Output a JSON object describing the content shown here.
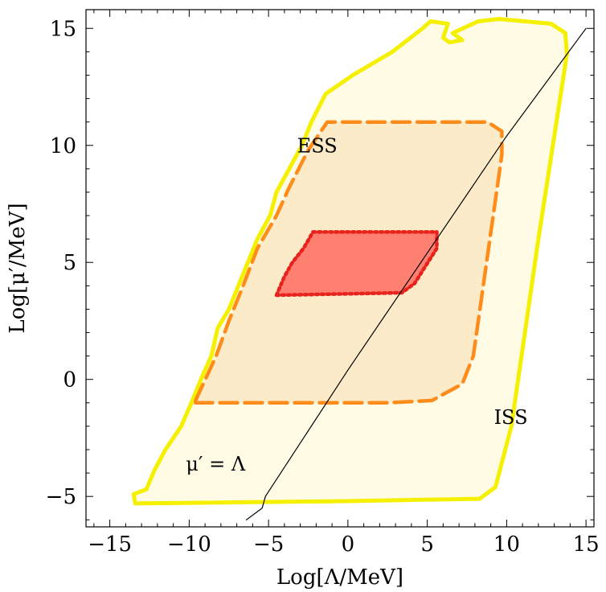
{
  "chart_data": {
    "type": "area",
    "xlabel": "Log[Λ/MeV]",
    "ylabel": "Log[μ′/MeV]",
    "xlim": [
      -16.5,
      15.5
    ],
    "ylim": [
      -6.3,
      15.8
    ],
    "xticks": [
      -15,
      -10,
      -5,
      0,
      5,
      10,
      15
    ],
    "yticks": [
      -5,
      0,
      5,
      10,
      15
    ],
    "xtick_labels": [
      "−15",
      "−10",
      "−5",
      "0",
      "5",
      "10",
      "15"
    ],
    "ytick_labels": [
      "−5",
      "0",
      "5",
      "10",
      "15"
    ],
    "colors": {
      "outer_stroke": "#f5f000",
      "outer_fill": "#fffbe5",
      "middle_stroke": "#ff8c1a",
      "middle_fill": "#fcebc8",
      "inner_stroke": "#e8221c",
      "inner_fill": "#ff8070",
      "line": "#000000"
    },
    "annotations": [
      {
        "text": "ESS",
        "x": -3.2,
        "y": 9.7
      },
      {
        "text": "ISS",
        "x": 9.2,
        "y": -1.9
      },
      {
        "text": "μ′ = Λ",
        "x": -10.2,
        "y": -3.9
      }
    ],
    "series": [
      {
        "region": "outer",
        "style": "solid",
        "points": [
          [
            -13.4,
            -5.3
          ],
          [
            -13.5,
            -4.9
          ],
          [
            -12.7,
            -4.7
          ],
          [
            -12.2,
            -3.9
          ],
          [
            -11.5,
            -3.0
          ],
          [
            -10.5,
            -2.0
          ],
          [
            -9.8,
            -0.9
          ],
          [
            -9.2,
            0.1
          ],
          [
            -8.6,
            1.0
          ],
          [
            -8.2,
            2.2
          ],
          [
            -7.5,
            3.0
          ],
          [
            -6.9,
            4.0
          ],
          [
            -6.3,
            5.0
          ],
          [
            -5.7,
            6.0
          ],
          [
            -4.9,
            7.0
          ],
          [
            -4.5,
            8.0
          ],
          [
            -3.7,
            9.0
          ],
          [
            -2.9,
            10.0
          ],
          [
            -2.3,
            11.0
          ],
          [
            -1.4,
            12.2
          ],
          [
            0.3,
            13.0
          ],
          [
            2.8,
            14.0
          ],
          [
            4.7,
            15.0
          ],
          [
            5.2,
            15.3
          ],
          [
            6.3,
            15.2
          ],
          [
            6.0,
            14.6
          ],
          [
            6.4,
            14.4
          ],
          [
            7.2,
            14.5
          ],
          [
            6.6,
            14.8
          ],
          [
            8.2,
            15.3
          ],
          [
            9.5,
            15.4
          ],
          [
            12.8,
            15.2
          ],
          [
            13.7,
            14.8
          ],
          [
            13.8,
            13.9
          ],
          [
            12.0,
            6.0
          ],
          [
            10.3,
            -2.0
          ],
          [
            9.3,
            -4.6
          ],
          [
            8.3,
            -5.1
          ],
          [
            0,
            -5.2
          ],
          [
            -13.4,
            -5.3
          ]
        ]
      },
      {
        "region": "middle",
        "style": "dashed",
        "points": [
          [
            -9.6,
            -0.9
          ],
          [
            -8.3,
            1.0
          ],
          [
            -7.5,
            2.5
          ],
          [
            -6.6,
            4.0
          ],
          [
            -5.7,
            5.6
          ],
          [
            -4.5,
            7.0
          ],
          [
            -3.7,
            8.2
          ],
          [
            -2.5,
            9.8
          ],
          [
            -1.3,
            11.0
          ],
          [
            2.5,
            11.0
          ],
          [
            8.8,
            11.0
          ],
          [
            9.7,
            10.6
          ],
          [
            9.7,
            9.6
          ],
          [
            7.9,
            1.0
          ],
          [
            7.2,
            -0.2
          ],
          [
            5.3,
            -0.9
          ],
          [
            2.5,
            -1.0
          ],
          [
            -9.6,
            -1.0
          ]
        ]
      },
      {
        "region": "inner",
        "style": "dotted",
        "points": [
          [
            -4.5,
            3.6
          ],
          [
            -4.0,
            4.4
          ],
          [
            -3.5,
            5.0
          ],
          [
            -2.8,
            5.6
          ],
          [
            -2.2,
            6.3
          ],
          [
            5.6,
            6.3
          ],
          [
            5.6,
            5.6
          ],
          [
            4.2,
            4.1
          ],
          [
            3.4,
            3.7
          ],
          [
            -4.5,
            3.6
          ]
        ]
      },
      {
        "region": "diagonal",
        "style": "solid",
        "points": [
          [
            -6.4,
            -6.0
          ],
          [
            -5.4,
            -5.5
          ],
          [
            -5.2,
            -5.0
          ],
          [
            0,
            0.4
          ],
          [
            5,
            5.4
          ],
          [
            10,
            10.4
          ],
          [
            15,
            15.0
          ]
        ]
      }
    ]
  }
}
